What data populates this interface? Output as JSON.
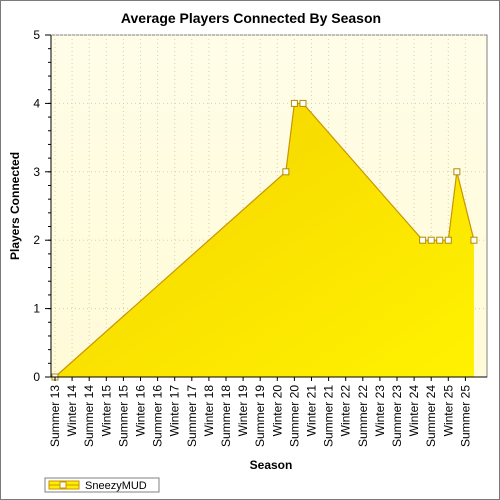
{
  "chart_data": {
    "type": "area",
    "title": "Average Players Connected By Season",
    "xlabel": "Season",
    "ylabel": "Players Connected",
    "ylim": [
      0,
      5
    ],
    "yticks": [
      "0",
      "1",
      "2",
      "3",
      "4",
      "5"
    ],
    "grid": true,
    "legend_position": "bottom-left",
    "categories": [
      "Summer 13",
      "Winter 14",
      "Summer 14",
      "Winter 15",
      "Summer 15",
      "Winter 16",
      "Summer 16",
      "Winter 17",
      "Summer 17",
      "Winter 18",
      "Summer 18",
      "Winter 19",
      "Summer 19",
      "Winter 20",
      "Summer 20",
      "Winter 21",
      "Summer 21",
      "Winter 22",
      "Summer 22",
      "Winter 23",
      "Summer 23",
      "Winter 24",
      "Summer 24",
      "Winter 25",
      "Summer 25"
    ],
    "series": [
      {
        "name": "SneezyMUD",
        "color": "#ffee00",
        "points": [
          {
            "x": "Summer 13",
            "y": 0
          },
          {
            "x": "Summer 20",
            "y": 3,
            "x_offset": -0.5
          },
          {
            "x": "Summer 20",
            "y": 4
          },
          {
            "x": "Summer 20",
            "y": 4,
            "x_offset": 0.5
          },
          {
            "x": "Summer 24",
            "y": 2,
            "x_offset": -0.5
          },
          {
            "x": "Summer 24",
            "y": 2
          },
          {
            "x": "Summer 24",
            "y": 2,
            "x_offset": 0.5
          },
          {
            "x": "Winter 25",
            "y": 2
          },
          {
            "x": "Winter 25",
            "y": 3,
            "x_offset": 0.5
          },
          {
            "x": "Summer 25",
            "y": 2,
            "x_offset": 0.5
          }
        ]
      }
    ]
  }
}
